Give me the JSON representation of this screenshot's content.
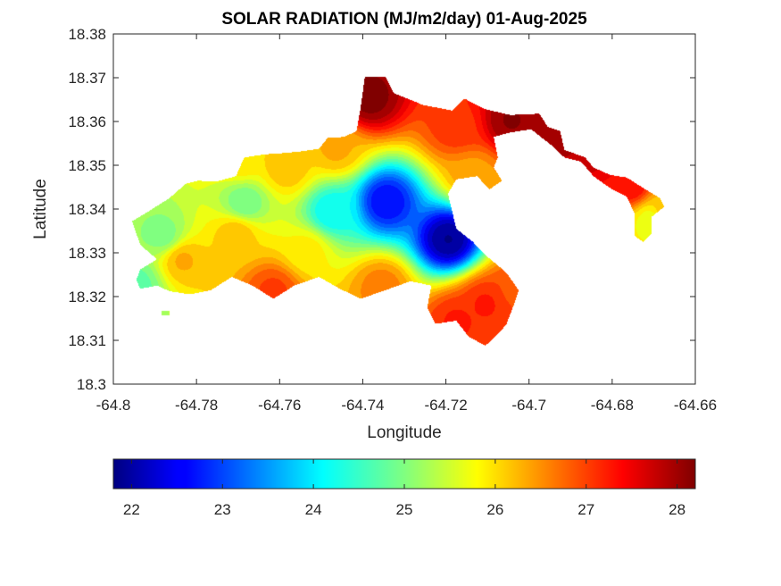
{
  "chart_data": {
    "type": "heatmap",
    "title": "SOLAR RADIATION (MJ/m2/day) 01-Aug-2025",
    "xlabel": "Longitude",
    "ylabel": "Latitude",
    "xlim": [
      -64.8,
      -64.66
    ],
    "ylim": [
      18.3,
      18.38
    ],
    "xticks": [
      -64.8,
      -64.78,
      -64.76,
      -64.74,
      -64.72,
      -64.7,
      -64.68,
      -64.66
    ],
    "xtick_labels": [
      "-64.8",
      "-64.78",
      "-64.76",
      "-64.74",
      "-64.72",
      "-64.7",
      "-64.68",
      "-64.66"
    ],
    "yticks": [
      18.3,
      18.31,
      18.32,
      18.33,
      18.34,
      18.35,
      18.36,
      18.37,
      18.38
    ],
    "ytick_labels": [
      "18.3",
      "18.31",
      "18.32",
      "18.33",
      "18.34",
      "18.35",
      "18.36",
      "18.37",
      "18.38"
    ],
    "colormap": "jet",
    "clim": [
      21.8,
      28.2
    ],
    "colorbar": {
      "location": "bottom",
      "ticks": [
        22,
        23,
        24,
        25,
        26,
        27,
        28
      ],
      "tick_labels": [
        "22",
        "23",
        "24",
        "25",
        "26",
        "27",
        "28"
      ]
    },
    "grid": false,
    "field_peaks": [
      {
        "lon": -64.7195,
        "lat": 18.3332,
        "value": 21.9
      },
      {
        "lon": -64.7345,
        "lat": 18.3418,
        "value": 22.6
      },
      {
        "lon": -64.7475,
        "lat": 18.3395,
        "value": 24.2
      },
      {
        "lon": -64.7685,
        "lat": 18.3415,
        "value": 24.9
      },
      {
        "lon": -64.788,
        "lat": 18.334,
        "value": 25.0
      },
      {
        "lon": -64.7945,
        "lat": 18.3228,
        "value": 24.8
      },
      {
        "lon": -64.7385,
        "lat": 18.3655,
        "value": 28.2
      },
      {
        "lon": -64.7045,
        "lat": 18.3603,
        "value": 28.1
      },
      {
        "lon": -64.6895,
        "lat": 18.3578,
        "value": 28.1
      },
      {
        "lon": -64.6845,
        "lat": 18.3535,
        "value": 27.7
      },
      {
        "lon": -64.6755,
        "lat": 18.3455,
        "value": 27.4
      },
      {
        "lon": -64.7175,
        "lat": 18.3145,
        "value": 27.2
      },
      {
        "lon": -64.7175,
        "lat": 18.3588,
        "value": 27.1
      },
      {
        "lon": -64.7135,
        "lat": 18.3478,
        "value": 26.4
      },
      {
        "lon": -64.7035,
        "lat": 18.3215,
        "value": 26.9
      },
      {
        "lon": -64.7105,
        "lat": 18.3185,
        "value": 27.2
      },
      {
        "lon": -64.7355,
        "lat": 18.3225,
        "value": 26.6
      },
      {
        "lon": -64.7615,
        "lat": 18.3215,
        "value": 27.0
      },
      {
        "lon": -64.7835,
        "lat": 18.3285,
        "value": 26.3
      },
      {
        "lon": -64.7585,
        "lat": 18.3495,
        "value": 26.2
      },
      {
        "lon": -64.7465,
        "lat": 18.3538,
        "value": 26.3
      },
      {
        "lon": -64.7705,
        "lat": 18.3345,
        "value": 26.2
      },
      {
        "lon": -64.7535,
        "lat": 18.3305,
        "value": 25.9
      },
      {
        "lon": -64.7695,
        "lat": 18.3515,
        "value": 26.0
      },
      {
        "lon": -64.6705,
        "lat": 18.3375,
        "value": 25.6
      },
      {
        "lon": -64.6675,
        "lat": 18.3395,
        "value": 26.2
      }
    ],
    "data_extent": [
      [
        -64.7395,
        18.3702
      ],
      [
        -64.7345,
        18.3702
      ],
      [
        -64.7325,
        18.3665
      ],
      [
        -64.7255,
        18.3638
      ],
      [
        -64.7185,
        18.3625
      ],
      [
        -64.7155,
        18.3652
      ],
      [
        -64.7105,
        18.3628
      ],
      [
        -64.7045,
        18.3615
      ],
      [
        -64.6975,
        18.3618
      ],
      [
        -64.6955,
        18.3588
      ],
      [
        -64.6925,
        18.3578
      ],
      [
        -64.6915,
        18.3535
      ],
      [
        -64.6865,
        18.3518
      ],
      [
        -64.6845,
        18.3495
      ],
      [
        -64.6805,
        18.3478
      ],
      [
        -64.6765,
        18.3472
      ],
      [
        -64.6725,
        18.3448
      ],
      [
        -64.6685,
        18.3425
      ],
      [
        -64.6675,
        18.3405
      ],
      [
        -64.6705,
        18.3382
      ],
      [
        -64.6705,
        18.3345
      ],
      [
        -64.6725,
        18.3325
      ],
      [
        -64.6745,
        18.3338
      ],
      [
        -64.6745,
        18.3388
      ],
      [
        -64.6765,
        18.3428
      ],
      [
        -64.6805,
        18.3448
      ],
      [
        -64.6845,
        18.3475
      ],
      [
        -64.6875,
        18.3508
      ],
      [
        -64.6915,
        18.3518
      ],
      [
        -64.6945,
        18.3545
      ],
      [
        -64.6995,
        18.3582
      ],
      [
        -64.7045,
        18.3575
      ],
      [
        -64.7085,
        18.3565
      ],
      [
        -64.7075,
        18.3518
      ],
      [
        -64.7085,
        18.3495
      ],
      [
        -64.7065,
        18.3465
      ],
      [
        -64.7095,
        18.3445
      ],
      [
        -64.7125,
        18.3475
      ],
      [
        -64.7175,
        18.3468
      ],
      [
        -64.7195,
        18.3435
      ],
      [
        -64.7185,
        18.3395
      ],
      [
        -64.7175,
        18.3355
      ],
      [
        -64.7135,
        18.3325
      ],
      [
        -64.7105,
        18.3295
      ],
      [
        -64.7055,
        18.3255
      ],
      [
        -64.7025,
        18.3215
      ],
      [
        -64.7035,
        18.3185
      ],
      [
        -64.7055,
        18.3135
      ],
      [
        -64.7085,
        18.3105
      ],
      [
        -64.7105,
        18.3088
      ],
      [
        -64.7145,
        18.3108
      ],
      [
        -64.7175,
        18.3145
      ],
      [
        -64.7225,
        18.3138
      ],
      [
        -64.7245,
        18.3175
      ],
      [
        -64.7235,
        18.3225
      ],
      [
        -64.7285,
        18.3235
      ],
      [
        -64.7345,
        18.3215
      ],
      [
        -64.7405,
        18.3195
      ],
      [
        -64.7455,
        18.3218
      ],
      [
        -64.7505,
        18.3245
      ],
      [
        -64.7565,
        18.3225
      ],
      [
        -64.7615,
        18.3195
      ],
      [
        -64.7665,
        18.3225
      ],
      [
        -64.7715,
        18.3245
      ],
      [
        -64.7765,
        18.3215
      ],
      [
        -64.7815,
        18.3205
      ],
      [
        -64.7865,
        18.3212
      ],
      [
        -64.7895,
        18.3225
      ],
      [
        -64.7935,
        18.3218
      ],
      [
        -64.7945,
        18.3238
      ],
      [
        -64.7935,
        18.3262
      ],
      [
        -64.7895,
        18.3285
      ],
      [
        -64.7935,
        18.3318
      ],
      [
        -64.7945,
        18.3345
      ],
      [
        -64.7955,
        18.3372
      ],
      [
        -64.7915,
        18.3395
      ],
      [
        -64.7865,
        18.3425
      ],
      [
        -64.7825,
        18.3458
      ],
      [
        -64.7795,
        18.3465
      ],
      [
        -64.7755,
        18.3462
      ],
      [
        -64.7705,
        18.3475
      ],
      [
        -64.7685,
        18.3518
      ],
      [
        -64.7635,
        18.3525
      ],
      [
        -64.7585,
        18.3528
      ],
      [
        -64.7545,
        18.3532
      ],
      [
        -64.7505,
        18.3538
      ],
      [
        -64.7485,
        18.3562
      ],
      [
        -64.7445,
        18.3565
      ],
      [
        -64.7415,
        18.3578
      ],
      [
        -64.7405,
        18.3632
      ]
    ],
    "data_extent_islet": [
      [
        -64.7885,
        18.3168
      ],
      [
        -64.7865,
        18.3168
      ],
      [
        -64.7865,
        18.3158
      ],
      [
        -64.7885,
        18.3158
      ]
    ]
  }
}
